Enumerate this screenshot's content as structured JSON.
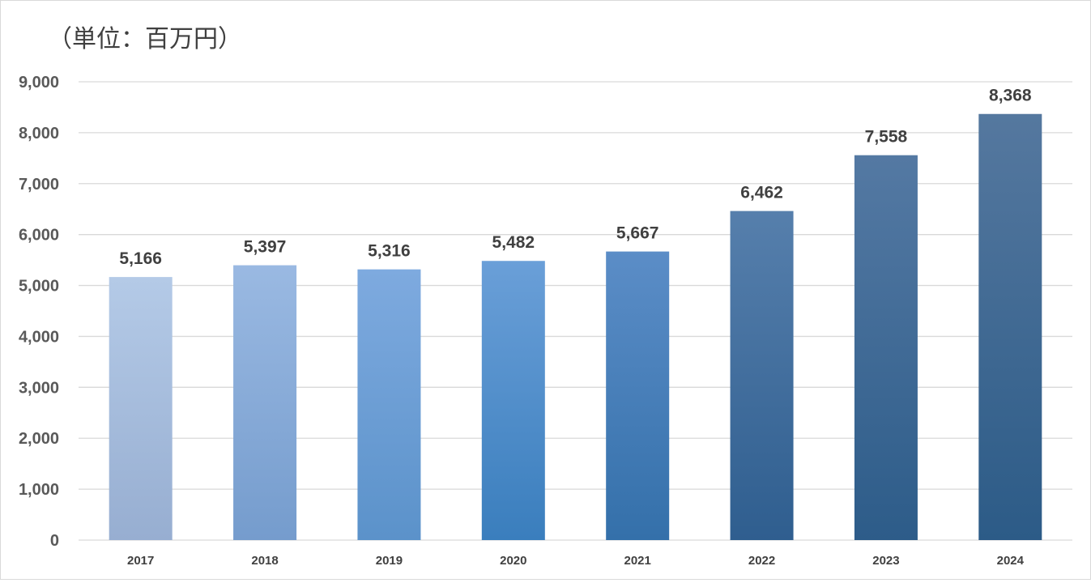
{
  "chart_data": {
    "type": "bar",
    "title": "",
    "unit_label": "（単位：百万円）",
    "xlabel": "",
    "ylabel": "",
    "categories": [
      "2017",
      "2018",
      "2019",
      "2020",
      "2021",
      "2022",
      "2023",
      "2024"
    ],
    "values": [
      5166,
      5397,
      5316,
      5482,
      5667,
      6462,
      7558,
      8368
    ],
    "value_labels": [
      "5,166",
      "5,397",
      "5,316",
      "5,482",
      "5,667",
      "6,462",
      "7,558",
      "8,368"
    ],
    "ylim": [
      0,
      9000
    ],
    "yticks": [
      0,
      1000,
      2000,
      3000,
      4000,
      5000,
      6000,
      7000,
      8000,
      9000
    ],
    "ytick_labels": [
      "0",
      "1,000",
      "2,000",
      "3,000",
      "4,000",
      "5,000",
      "6,000",
      "7,000",
      "8,000",
      "9,000"
    ],
    "grid": true,
    "legend": "none",
    "bar_colors": [
      {
        "top": "#b4cae7",
        "bottom": "#97aed1"
      },
      {
        "top": "#9ab9e2",
        "bottom": "#759ccd"
      },
      {
        "top": "#7eaadf",
        "bottom": "#5b92ca"
      },
      {
        "top": "#6a9fd8",
        "bottom": "#3a7ebd"
      },
      {
        "top": "#5b8dc7",
        "bottom": "#3470aa"
      },
      {
        "top": "#567fac",
        "bottom": "#2f5e8f"
      },
      {
        "top": "#5479a3",
        "bottom": "#2d5c89"
      },
      {
        "top": "#55789f",
        "bottom": "#2c5b87"
      }
    ],
    "gridline_color": "#d9d9d9"
  }
}
